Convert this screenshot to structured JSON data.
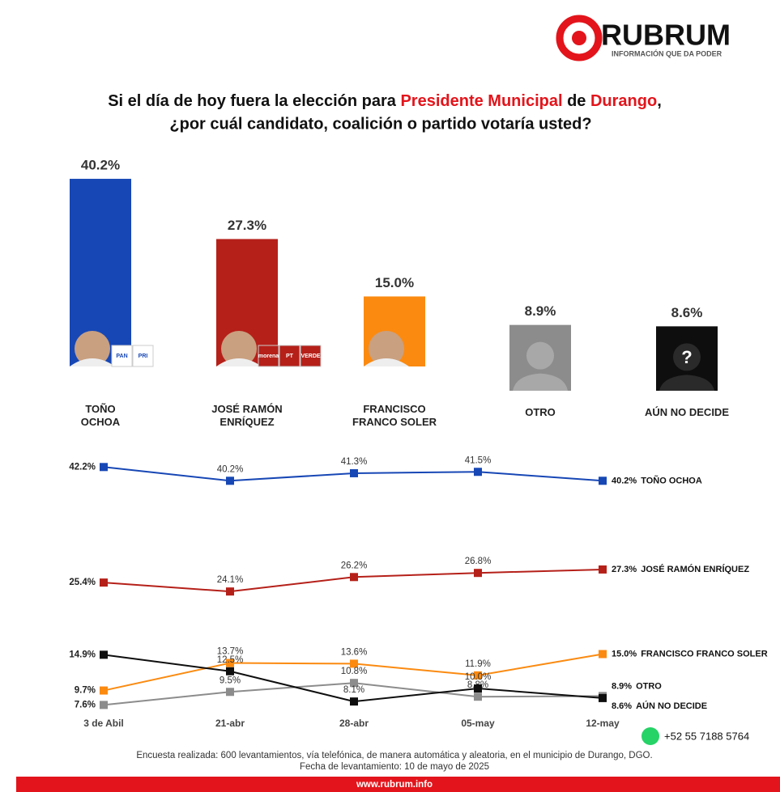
{
  "header": {
    "logo": "RUBRUM",
    "tagline": "INFORMACIÓN QUE DA PODER",
    "title": [
      "Si el día de hoy fuera la elección para ",
      "Presidente Municipal",
      " de ",
      "Durango",
      ","
    ],
    "title_line2": "¿por cuál candidato, coalición o partido votaría usted?"
  },
  "chart_data": [
    {
      "type": "bar",
      "categories": [
        "TOÑO\nOCHOA",
        "JOSÉ RAMÓN\nENRÍQUEZ",
        "FRANCISCO\nFRANCO SOLER",
        "OTRO",
        "AÚN NO DECIDE"
      ],
      "values": [
        40.2,
        27.3,
        15.0,
        8.9,
        8.6
      ],
      "value_labels": [
        "40.2%",
        "27.3%",
        "15.0%",
        "8.9%",
        "8.6%"
      ],
      "colors": [
        "#1747b5",
        "#b52019",
        "#fb8a10",
        "#8c8c8c",
        "#0e0e0e"
      ],
      "parties": [
        [
          "PAN",
          "PRI"
        ],
        [
          "morena",
          "PT",
          "VERDE"
        ]
      ]
    },
    {
      "type": "line",
      "categories": [
        "3 de Abil",
        "21-abr",
        "28-abr",
        "05-may",
        "12-may"
      ],
      "series": [
        {
          "name": "TOÑO OCHOA",
          "color": "#1747b5",
          "values": [
            42.2,
            40.2,
            41.3,
            41.5,
            40.2
          ],
          "value_labels": [
            "42.2%",
            "40.2%",
            "41.3%",
            "41.5%",
            "40.2%"
          ]
        },
        {
          "name": "JOSÉ RAMÓN ENRÍQUEZ",
          "color": "#b52019",
          "values": [
            25.4,
            24.1,
            26.2,
            26.8,
            27.3
          ],
          "value_labels": [
            "25.4%",
            "24.1%",
            "26.2%",
            "26.8%",
            "27.3%"
          ]
        },
        {
          "name": "FRANCISCO FRANCO SOLER",
          "color": "#fb8a10",
          "values": [
            9.7,
            13.7,
            13.6,
            11.9,
            15.0
          ],
          "value_labels": [
            "9.7%",
            "13.7%",
            "13.6%",
            "11.9%",
            "15.0%"
          ]
        },
        {
          "name": "OTRO",
          "color": "#8c8c8c",
          "values": [
            7.6,
            9.5,
            10.8,
            8.8,
            8.9
          ],
          "value_labels": [
            "7.6%",
            "9.5%",
            "10.8%",
            "8.8%",
            "8.9%"
          ]
        },
        {
          "name": "AÚN NO DECIDE",
          "color": "#0e0e0e",
          "values": [
            14.9,
            12.5,
            8.1,
            10.0,
            8.6
          ],
          "value_labels": [
            "14.9%",
            "12.5%",
            "8.1%",
            "10.0%",
            "8.6%"
          ]
        }
      ]
    }
  ],
  "footer": {
    "phone": "+52 55 7188 5764",
    "note": "Encuesta realizada: 600 levantamientos, vía telefónica, de manera automática y aleatoria, en el municipio de Durango, DGO.",
    "date": "Fecha de levantamiento: 10 de mayo de 2025",
    "url": "www.rubrum.info"
  }
}
